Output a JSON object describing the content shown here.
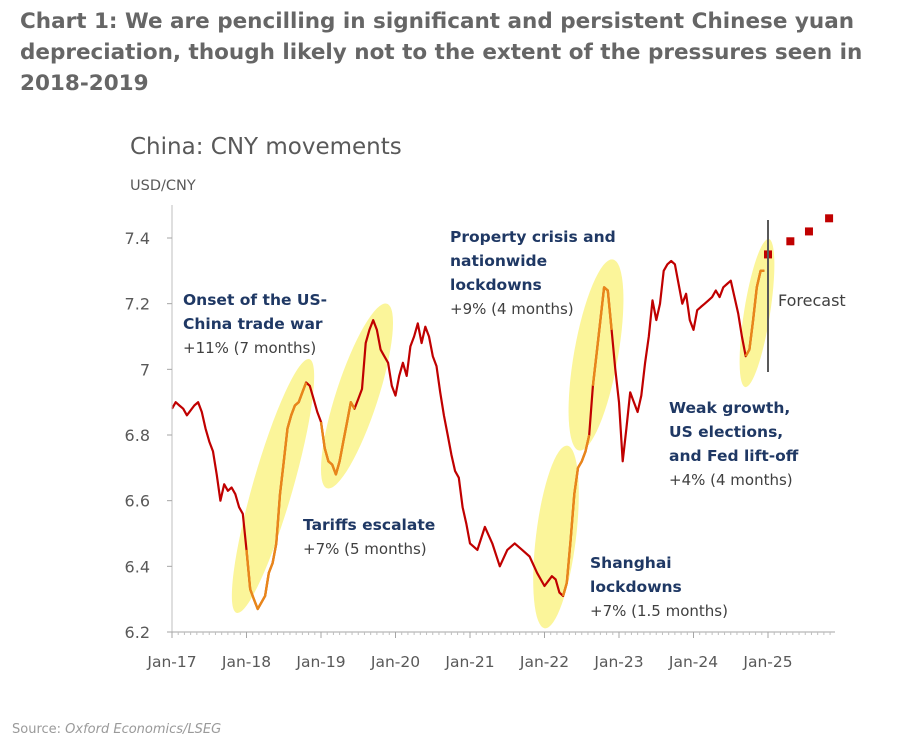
{
  "heading": "Chart 1: We are pencilling in significant and persistent Chinese yuan depreciation, though likely not to the extent of the pressures seen in 2018-2019",
  "source_label": "Source:",
  "source_value": "Oxford Economics/LSEG",
  "colors": {
    "line": "#c00000",
    "highlight_line": "#e8861a",
    "ellipse": "#fbf59a",
    "forecast": "#c00000",
    "annotation_title": "#1f3864",
    "annotation_body": "#404040",
    "axis": "#7f7f7f"
  },
  "chart_data": {
    "type": "line",
    "title": "China: CNY movements",
    "ylabel": "USD/CNY",
    "xlabel": "",
    "ylim": [
      6.2,
      7.45
    ],
    "yticks": [
      6.2,
      6.4,
      6.6,
      6.8,
      7,
      7.2,
      7.4
    ],
    "ytick_labels": [
      "6.2",
      "6.4",
      "6.6",
      "6.8",
      "7",
      "7.2",
      "7.4"
    ],
    "xlim": [
      2017.0,
      2025.95
    ],
    "xticks": [
      2017,
      2018,
      2019,
      2020,
      2021,
      2022,
      2023,
      2024,
      2025
    ],
    "xtick_labels": [
      "Jan-17",
      "Jan-18",
      "Jan-19",
      "Jan-20",
      "Jan-21",
      "Jan-22",
      "Jan-23",
      "Jan-24",
      "Jan-25"
    ],
    "grid": false,
    "series": [
      {
        "x": [
          2017.0,
          2017.05,
          2017.1,
          2017.15,
          2017.2,
          2017.3,
          2017.35,
          2017.4,
          2017.45,
          2017.5,
          2017.55,
          2017.6,
          2017.65,
          2017.7,
          2017.75,
          2017.8,
          2017.85,
          2017.9,
          2017.95,
          2018.0,
          2018.05,
          2018.1,
          2018.15,
          2018.2,
          2018.25,
          2018.3,
          2018.35,
          2018.4,
          2018.45,
          2018.5,
          2018.55,
          2018.6,
          2018.65,
          2018.7,
          2018.75,
          2018.8,
          2018.85,
          2018.9,
          2018.95,
          2019.0,
          2019.05,
          2019.1,
          2019.15,
          2019.2,
          2019.25,
          2019.3,
          2019.35,
          2019.4,
          2019.45,
          2019.5,
          2019.55,
          2019.6,
          2019.65,
          2019.7,
          2019.75,
          2019.8,
          2019.85,
          2019.9,
          2019.95,
          2020.0,
          2020.05,
          2020.1,
          2020.15,
          2020.2,
          2020.25,
          2020.3,
          2020.35,
          2020.4,
          2020.45,
          2020.5,
          2020.55,
          2020.6,
          2020.65,
          2020.7,
          2020.75,
          2020.8,
          2020.85,
          2020.9,
          2020.95,
          2021.0,
          2021.1,
          2021.2,
          2021.3,
          2021.4,
          2021.5,
          2021.6,
          2021.7,
          2021.8,
          2021.9,
          2022.0,
          2022.1,
          2022.15,
          2022.2,
          2022.25,
          2022.3,
          2022.35,
          2022.4,
          2022.45,
          2022.5,
          2022.55,
          2022.6,
          2022.65,
          2022.7,
          2022.75,
          2022.8,
          2022.85,
          2022.9,
          2022.95,
          2023.0,
          2023.05,
          2023.1,
          2023.15,
          2023.2,
          2023.25,
          2023.3,
          2023.35,
          2023.4,
          2023.45,
          2023.5,
          2023.55,
          2023.6,
          2023.65,
          2023.7,
          2023.75,
          2023.8,
          2023.85,
          2023.9,
          2023.95,
          2024.0,
          2024.05,
          2024.1,
          2024.15,
          2024.2,
          2024.25,
          2024.3,
          2024.35,
          2024.4,
          2024.45,
          2024.5,
          2024.55,
          2024.6,
          2024.65,
          2024.7,
          2024.75,
          2024.8,
          2024.85,
          2024.9,
          2024.95
        ],
        "values": [
          6.88,
          6.9,
          6.89,
          6.88,
          6.86,
          6.89,
          6.9,
          6.87,
          6.82,
          6.78,
          6.75,
          6.68,
          6.6,
          6.65,
          6.63,
          6.64,
          6.62,
          6.58,
          6.56,
          6.45,
          6.33,
          6.3,
          6.27,
          6.29,
          6.31,
          6.38,
          6.41,
          6.47,
          6.62,
          6.72,
          6.82,
          6.86,
          6.89,
          6.9,
          6.93,
          6.96,
          6.95,
          6.91,
          6.87,
          6.84,
          6.76,
          6.72,
          6.71,
          6.68,
          6.72,
          6.78,
          6.84,
          6.9,
          6.88,
          6.91,
          6.94,
          7.08,
          7.12,
          7.15,
          7.12,
          7.06,
          7.04,
          7.02,
          6.95,
          6.92,
          6.98,
          7.02,
          6.98,
          7.07,
          7.1,
          7.14,
          7.08,
          7.13,
          7.1,
          7.04,
          7.01,
          6.93,
          6.86,
          6.8,
          6.74,
          6.69,
          6.67,
          6.58,
          6.53,
          6.47,
          6.45,
          6.52,
          6.47,
          6.4,
          6.45,
          6.47,
          6.45,
          6.43,
          6.38,
          6.34,
          6.37,
          6.36,
          6.32,
          6.31,
          6.35,
          6.48,
          6.62,
          6.7,
          6.72,
          6.75,
          6.8,
          6.95,
          7.05,
          7.15,
          7.25,
          7.24,
          7.12,
          7.0,
          6.9,
          6.72,
          6.82,
          6.93,
          6.9,
          6.87,
          6.92,
          7.02,
          7.1,
          7.21,
          7.15,
          7.2,
          7.3,
          7.32,
          7.33,
          7.32,
          7.26,
          7.2,
          7.23,
          7.15,
          7.12,
          7.18,
          7.19,
          7.2,
          7.21,
          7.22,
          7.24,
          7.22,
          7.25,
          7.26,
          7.27,
          7.22,
          7.17,
          7.1,
          7.04,
          7.06,
          7.15,
          7.25,
          7.3,
          7.3
        ]
      },
      {
        "x": [
          2025.0,
          2025.3,
          2025.55,
          2025.82
        ],
        "values": [
          7.35,
          7.39,
          7.42,
          7.46
        ]
      }
    ],
    "annotations": [
      {
        "title": [
          "Onset of the US-",
          "China trade war"
        ],
        "note": "+11% (7 months)"
      },
      {
        "title": [
          "Tariffs escalate"
        ],
        "note": "+7% (5 months)"
      },
      {
        "title": [
          "Property crisis and",
          "nationwide",
          "lockdowns"
        ],
        "note": "+9% (4 months)"
      },
      {
        "title": [
          "Shanghai",
          "lockdowns"
        ],
        "note": "+7% (1.5 months)"
      },
      {
        "title": [
          "Weak growth,",
          "US elections,",
          "and Fed lift-off"
        ],
        "note": "+4% (4 months)"
      }
    ],
    "forecast_label": "Forecast",
    "forecast_start": 2025.0
  }
}
